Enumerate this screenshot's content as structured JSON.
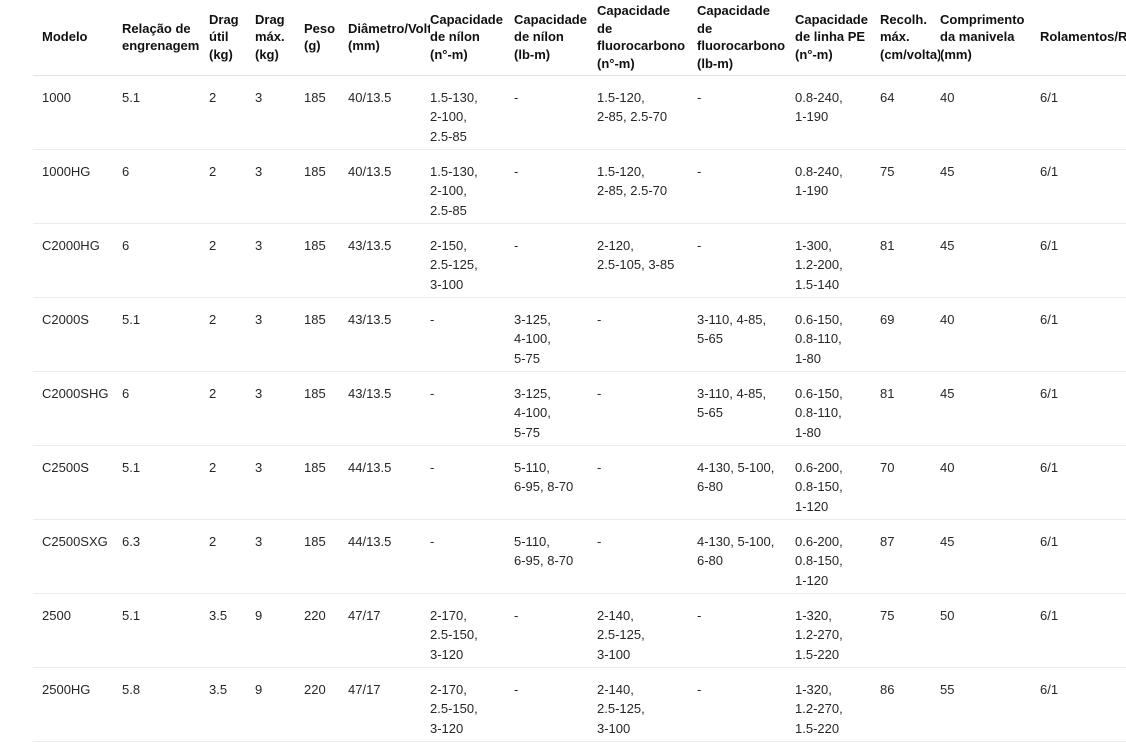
{
  "table": {
    "columns": [
      "Modelo",
      "Relação de engrenagem",
      "Drag útil (kg)",
      "Drag máx. (kg)",
      "Peso (g)",
      "Diâmetro/Volta (mm)",
      "Capacidade de nílon (n°-m)",
      "Capacidade de nílon (lb-m)",
      "Capacidade de fluorocarbono (n°-m)",
      "Capacidade de fluorocarbono (lb-m)",
      "Capacidade de linha PE (n°-m)",
      "Recolh. máx. (cm/volta)",
      "Comprimento da manivela (mm)",
      "Rolamentos/Rolers"
    ],
    "rows": [
      [
        "1000",
        "5.1",
        "2",
        "3",
        "185",
        "40/13.5",
        "1.5-130,\n2-100,\n2.5-85",
        "-",
        "1.5-120,\n2-85, 2.5-70",
        "-",
        "0.8-240,\n1-190",
        "64",
        "40",
        "6/1"
      ],
      [
        "1000HG",
        "6",
        "2",
        "3",
        "185",
        "40/13.5",
        "1.5-130,\n2-100,\n2.5-85",
        "-",
        "1.5-120,\n2-85, 2.5-70",
        "-",
        "0.8-240,\n1-190",
        "75",
        "45",
        "6/1"
      ],
      [
        "C2000HG",
        "6",
        "2",
        "3",
        "185",
        "43/13.5",
        "2-150,\n2.5-125,\n3-100",
        "-",
        "2-120,\n2.5-105, 3-85",
        "-",
        "1-300,\n1.2-200,\n1.5-140",
        "81",
        "45",
        "6/1"
      ],
      [
        "C2000S",
        "5.1",
        "2",
        "3",
        "185",
        "43/13.5",
        "-",
        "3-125,\n4-100,\n5-75",
        "-",
        "3-110, 4-85,\n5-65",
        "0.6-150,\n0.8-110,\n1-80",
        "69",
        "40",
        "6/1"
      ],
      [
        "C2000SHG",
        "6",
        "2",
        "3",
        "185",
        "43/13.5",
        "-",
        "3-125,\n4-100,\n5-75",
        "-",
        "3-110, 4-85,\n5-65",
        "0.6-150,\n0.8-110,\n1-80",
        "81",
        "45",
        "6/1"
      ],
      [
        "C2500S",
        "5.1",
        "2",
        "3",
        "185",
        "44/13.5",
        "-",
        "5-110,\n6-95, 8-70",
        "-",
        "4-130, 5-100,\n6-80",
        "0.6-200,\n0.8-150,\n1-120",
        "70",
        "40",
        "6/1"
      ],
      [
        "C2500SXG",
        "6.3",
        "2",
        "3",
        "185",
        "44/13.5",
        "-",
        "5-110,\n6-95, 8-70",
        "-",
        "4-130, 5-100,\n6-80",
        "0.6-200,\n0.8-150,\n1-120",
        "87",
        "45",
        "6/1"
      ],
      [
        "2500",
        "5.1",
        "3.5",
        "9",
        "220",
        "47/17",
        "2-170,\n2.5-150,\n3-120",
        "-",
        "2-140,\n2.5-125,\n3-100",
        "-",
        "1-320,\n1.2-270,\n1.5-220",
        "75",
        "50",
        "6/1"
      ],
      [
        "2500HG",
        "5.8",
        "3.5",
        "9",
        "220",
        "47/17",
        "2-170,\n2.5-150,\n3-120",
        "-",
        "2-140,\n2.5-125,\n3-100",
        "-",
        "1-320,\n1.2-270,\n1.5-220",
        "86",
        "55",
        "6/1"
      ]
    ]
  }
}
